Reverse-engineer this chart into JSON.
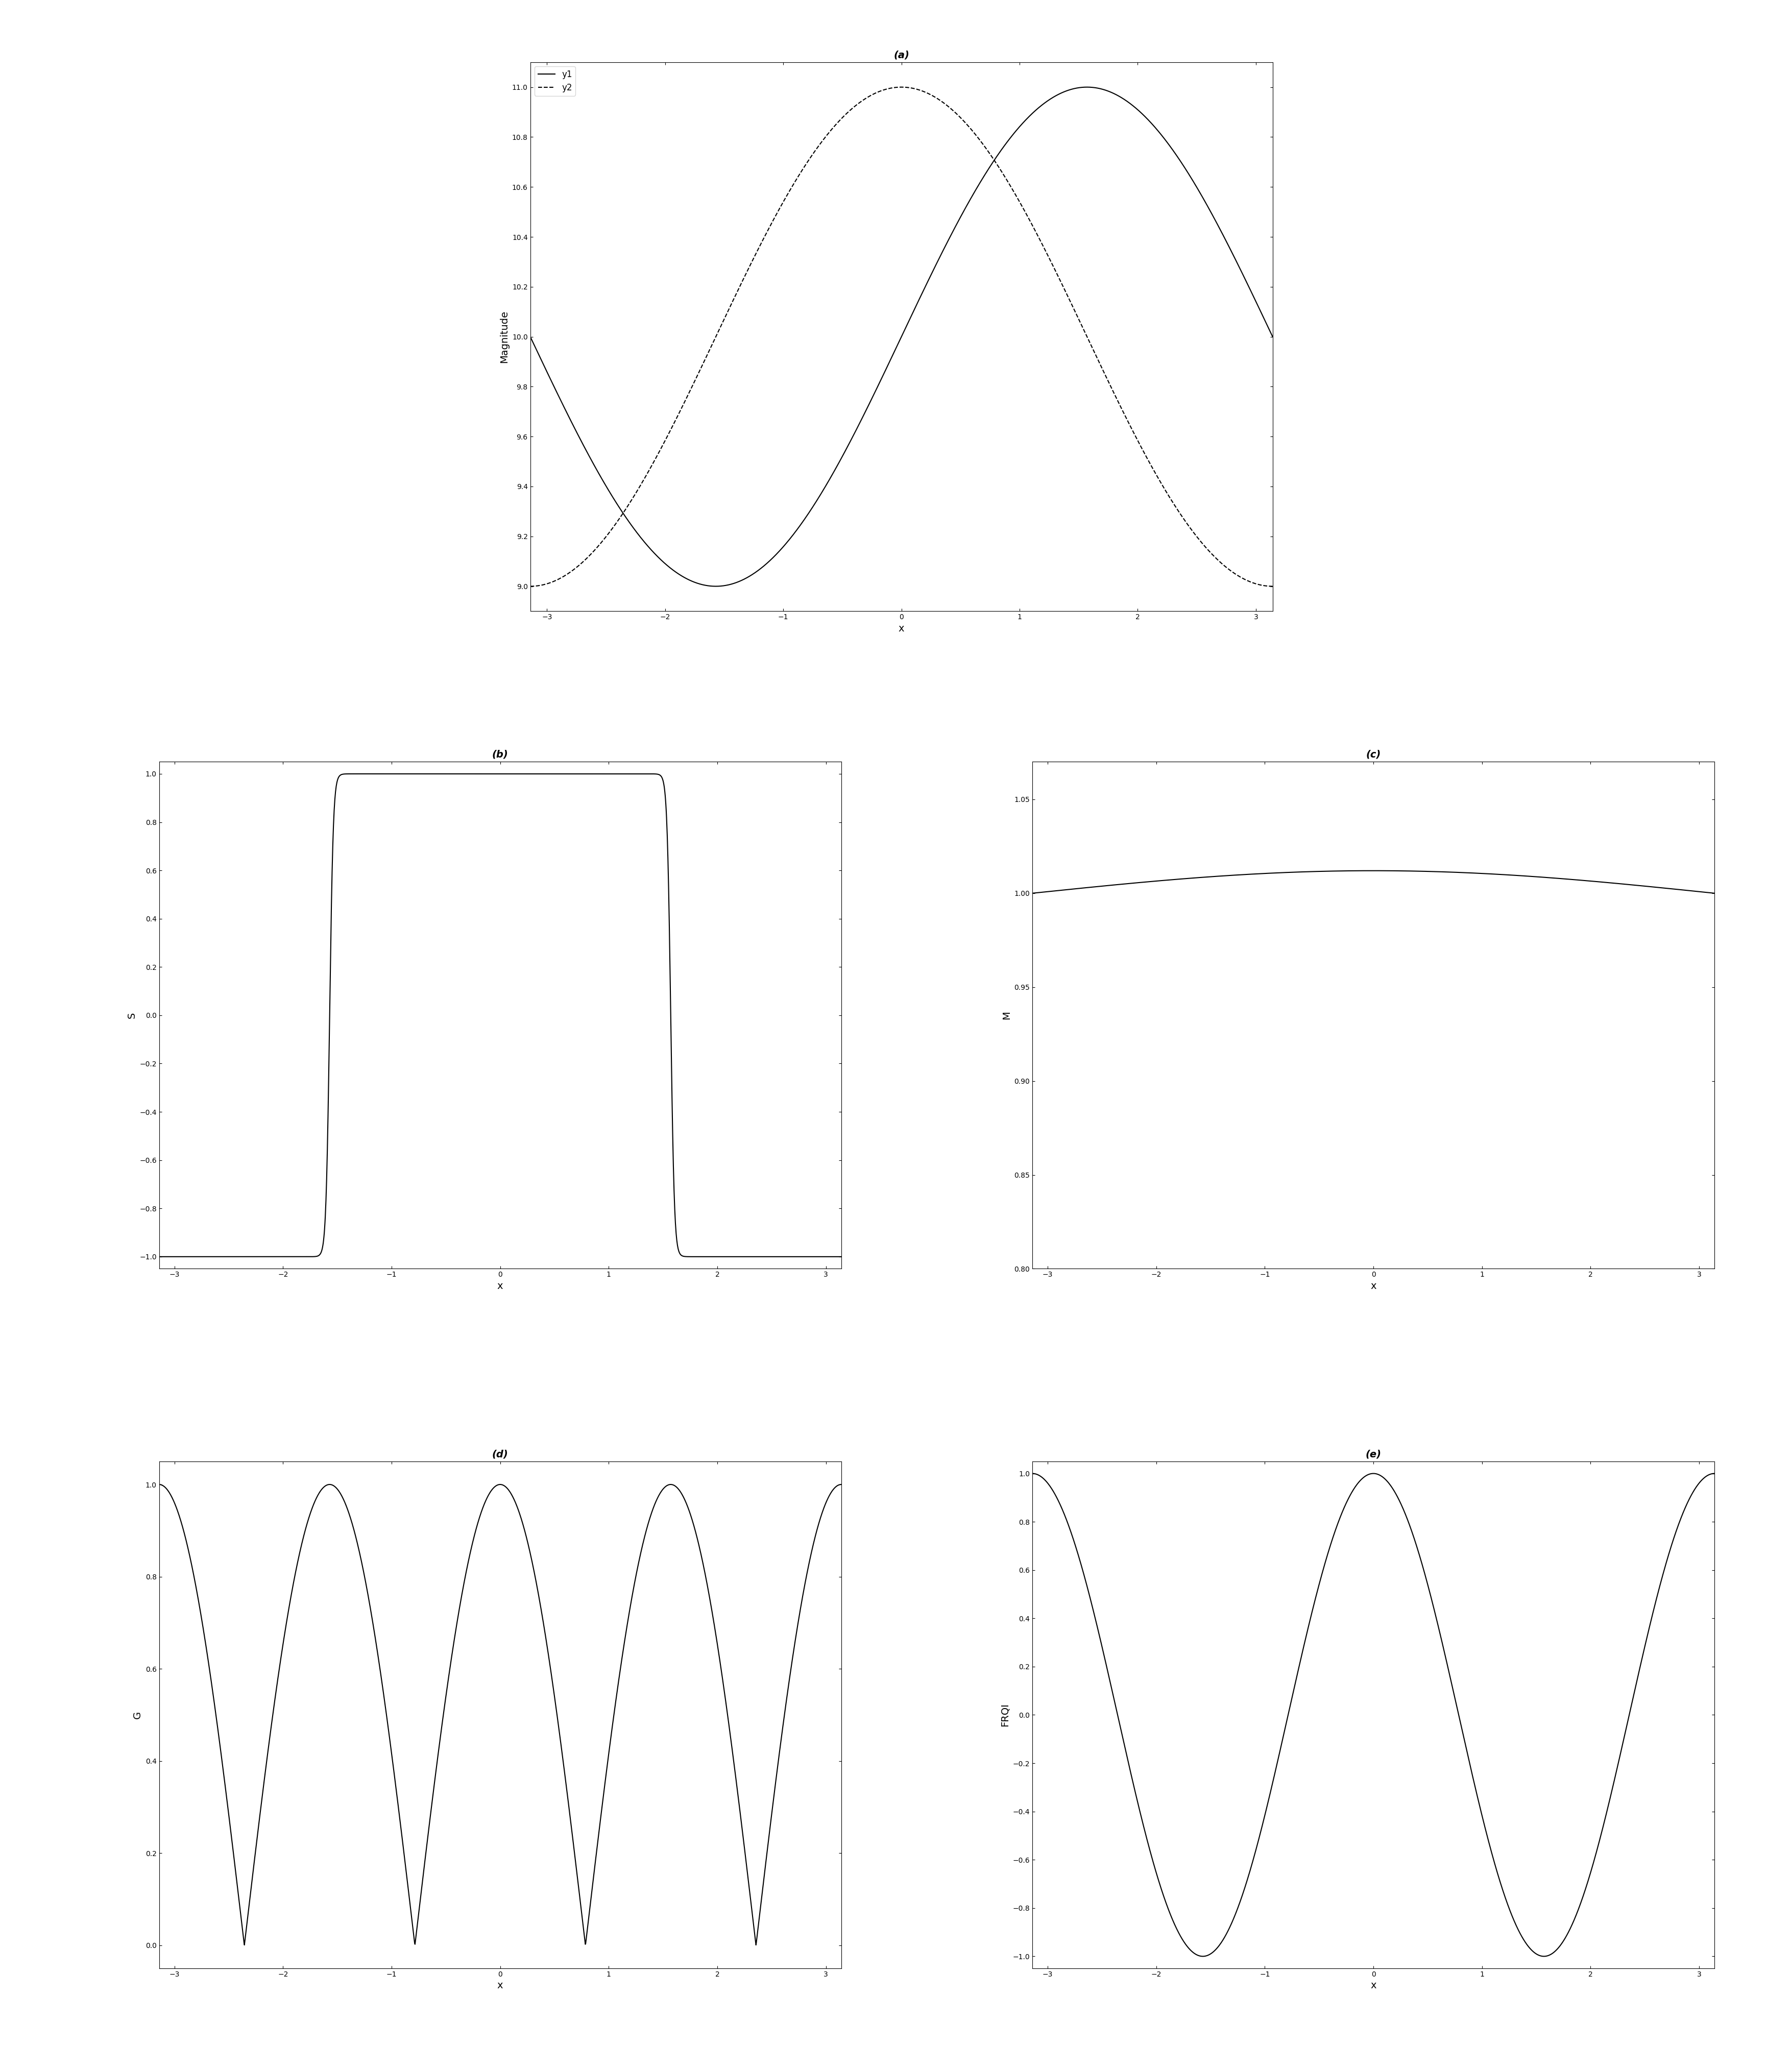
{
  "title_a": "(a)",
  "title_b": "(b)",
  "title_c": "(c)",
  "title_d": "(d)",
  "title_e": "(e)",
  "xlabel": "x",
  "ylabel_a": "Magnitude",
  "ylabel_b": "S",
  "ylabel_c": "M",
  "ylabel_d": "G",
  "ylabel_e": "FRQI",
  "legend_y1": "y1",
  "legend_y2": "y2",
  "ylim_a": [
    8.9,
    11.1
  ],
  "ylim_b": [
    -1.05,
    1.05
  ],
  "ylim_c": [
    0.8,
    1.07
  ],
  "ylim_d": [
    -0.05,
    1.05
  ],
  "ylim_e": [
    -1.05,
    1.05
  ],
  "yticks_a": [
    9,
    9.2,
    9.4,
    9.6,
    9.8,
    10,
    10.2,
    10.4,
    10.6,
    10.8,
    11
  ],
  "yticks_b": [
    -1,
    -0.8,
    -0.6,
    -0.4,
    -0.2,
    0,
    0.2,
    0.4,
    0.6,
    0.8,
    1
  ],
  "yticks_c": [
    0.8,
    0.85,
    0.9,
    0.95,
    1.0,
    1.05
  ],
  "yticks_d": [
    0,
    0.2,
    0.4,
    0.6,
    0.8,
    1.0
  ],
  "yticks_e": [
    -1,
    -0.8,
    -0.6,
    -0.4,
    -0.2,
    0,
    0.2,
    0.4,
    0.6,
    0.8,
    1
  ],
  "xticks": [
    -3,
    -2,
    -1,
    0,
    1,
    2,
    3
  ],
  "background": "#ffffff",
  "line_color": "#000000",
  "lw": 1.5,
  "fs_label": 14,
  "fs_title": 14,
  "fs_legend": 12,
  "tanh_k": 30,
  "freq_d": 2.0
}
